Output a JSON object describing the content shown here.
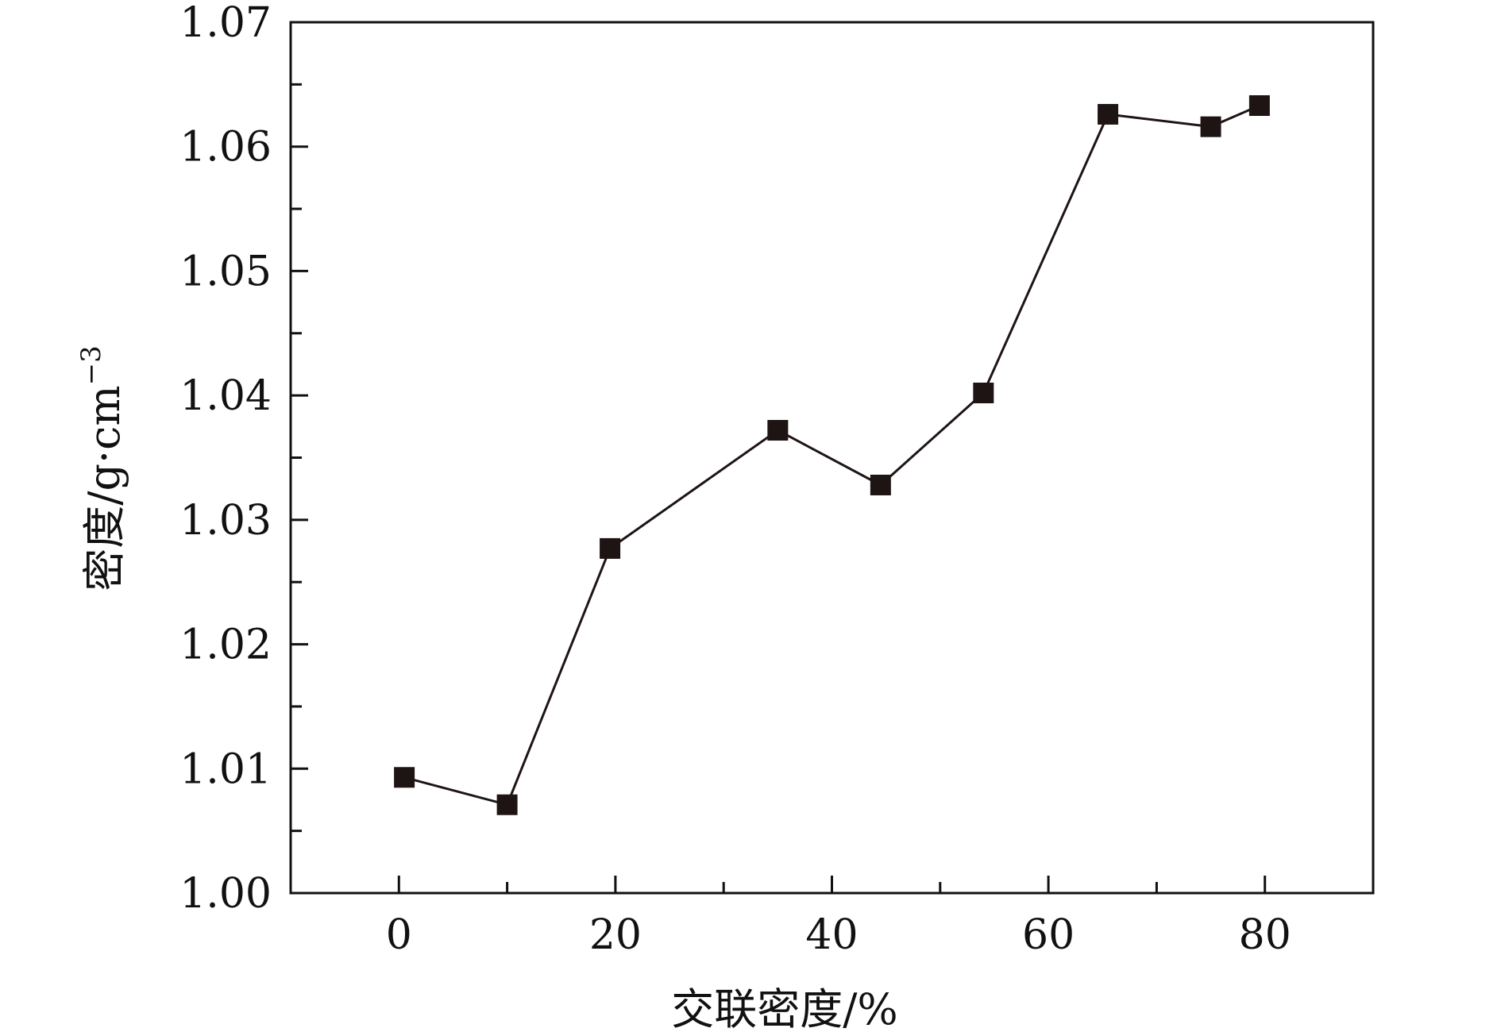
{
  "chart_data": {
    "type": "line",
    "xlabel": "交联密度/%",
    "ylabel": "密度/g·cm",
    "ylabel_sup": "−3",
    "xlim": [
      -10,
      90
    ],
    "ylim": [
      1.0,
      1.07
    ],
    "x_ticks": [
      0,
      20,
      40,
      60,
      80
    ],
    "x_tick_labels": [
      "0",
      "20",
      "40",
      "60",
      "80"
    ],
    "x_minor_ticks": [
      10,
      30,
      50,
      70
    ],
    "y_ticks": [
      1.0,
      1.01,
      1.02,
      1.03,
      1.04,
      1.05,
      1.06,
      1.07
    ],
    "y_tick_labels": [
      "1.00",
      "1.01",
      "1.02",
      "1.03",
      "1.04",
      "1.05",
      "1.06",
      "1.07"
    ],
    "y_minor_ticks": [
      1.005,
      1.015,
      1.025,
      1.035,
      1.045,
      1.055,
      1.065
    ],
    "grid": false,
    "legend": "none",
    "series": [
      {
        "marker": "square",
        "color": "#1e1414",
        "points": [
          {
            "x": 0.5,
            "y": 1.0093
          },
          {
            "x": 10,
            "y": 1.0071
          },
          {
            "x": 19.5,
            "y": 1.0277
          },
          {
            "x": 35,
            "y": 1.0372
          },
          {
            "x": 44.5,
            "y": 1.0328
          },
          {
            "x": 54,
            "y": 1.0402
          },
          {
            "x": 65.5,
            "y": 1.0626
          },
          {
            "x": 75,
            "y": 1.0616
          },
          {
            "x": 79.5,
            "y": 1.0633
          }
        ]
      }
    ]
  }
}
